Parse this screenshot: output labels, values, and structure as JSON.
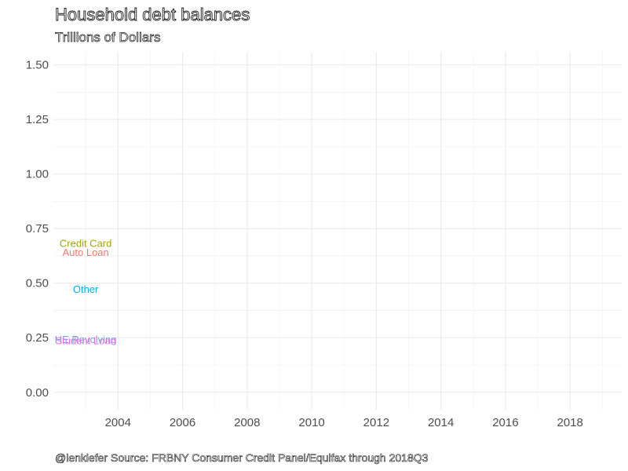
{
  "chart_data": {
    "type": "line",
    "title": "Household debt balances",
    "subtitle": "Trillions of Dollars",
    "caption": "@lenkiefer Source: FRBNY Consumer Credit Panel/Equifax through 2018Q3",
    "xlabel": "",
    "ylabel": "",
    "xlim": [
      2002.0,
      2019.6
    ],
    "ylim": [
      -0.08,
      1.56
    ],
    "x_ticks": [
      2004,
      2006,
      2008,
      2010,
      2012,
      2014,
      2016,
      2018
    ],
    "x_tick_labels": [
      "2004",
      "2006",
      "2008",
      "2010",
      "2012",
      "2014",
      "2016",
      "2018"
    ],
    "y_ticks": [
      0.0,
      0.25,
      0.5,
      0.75,
      1.0,
      1.25,
      1.5
    ],
    "y_tick_labels": [
      "0.00",
      "0.25",
      "0.50",
      "0.75",
      "1.00",
      "1.25",
      "1.50"
    ],
    "grid": true,
    "legend": "none (direct labels at series start)",
    "series": [
      {
        "name": "Credit Card",
        "color": "#a3a500",
        "x": [
          2003.0
        ],
        "y": [
          0.68
        ],
        "label_x": 2003.0,
        "label_y": 0.68
      },
      {
        "name": "Auto Loan",
        "color": "#f8766d",
        "x": [
          2003.0
        ],
        "y": [
          0.64
        ],
        "label_x": 2003.0,
        "label_y": 0.64
      },
      {
        "name": "Other",
        "color": "#00b0f6",
        "x": [
          2003.0
        ],
        "y": [
          0.47
        ],
        "label_x": 2003.0,
        "label_y": 0.47
      },
      {
        "name": "HE Revolving",
        "color": "#6fa8dc",
        "x": [
          2003.0
        ],
        "y": [
          0.24
        ],
        "label_x": 2003.0,
        "label_y": 0.24
      },
      {
        "name": "Student Loan",
        "color": "#e76bf3",
        "x": [
          2003.0
        ],
        "y": [
          0.235
        ],
        "label_x": 2003.0,
        "label_y": 0.235
      }
    ]
  }
}
